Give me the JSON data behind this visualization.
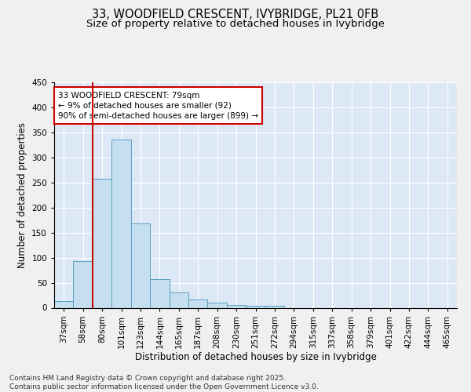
{
  "title_line1": "33, WOODFIELD CRESCENT, IVYBRIDGE, PL21 0FB",
  "title_line2": "Size of property relative to detached houses in Ivybridge",
  "xlabel": "Distribution of detached houses by size in Ivybridge",
  "ylabel": "Number of detached properties",
  "bar_values": [
    13,
    93,
    258,
    335,
    168,
    57,
    31,
    17,
    10,
    6,
    4,
    4,
    0,
    0,
    0,
    0,
    0,
    0,
    0,
    0,
    0
  ],
  "categories": [
    "37sqm",
    "58sqm",
    "80sqm",
    "101sqm",
    "123sqm",
    "144sqm",
    "165sqm",
    "187sqm",
    "208sqm",
    "230sqm",
    "251sqm",
    "272sqm",
    "294sqm",
    "315sqm",
    "337sqm",
    "358sqm",
    "379sqm",
    "401sqm",
    "422sqm",
    "444sqm",
    "465sqm"
  ],
  "bar_color": "#c5dff0",
  "bar_edgecolor": "#5a9fc0",
  "background_color": "#dce8f5",
  "grid_color": "#ffffff",
  "redline_index": 2,
  "annotation_text": "33 WOODFIELD CRESCENT: 79sqm\n← 9% of detached houses are smaller (92)\n90% of semi-detached houses are larger (899) →",
  "annotation_box_facecolor": "#ffffff",
  "annotation_box_edgecolor": "#cc0000",
  "ylim": [
    0,
    450
  ],
  "yticks": [
    0,
    50,
    100,
    150,
    200,
    250,
    300,
    350,
    400,
    450
  ],
  "footer_text": "Contains HM Land Registry data © Crown copyright and database right 2025.\nContains public sector information licensed under the Open Government Licence v3.0.",
  "title_fontsize": 10.5,
  "subtitle_fontsize": 9.5,
  "axis_label_fontsize": 8.5,
  "tick_fontsize": 7.5,
  "annotation_fontsize": 7.5,
  "footer_fontsize": 6.5,
  "fig_facecolor": "#f0f0f0"
}
